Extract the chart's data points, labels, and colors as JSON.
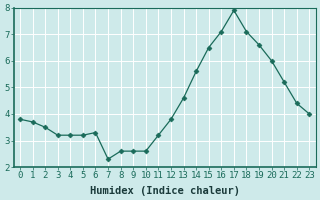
{
  "x": [
    0,
    1,
    2,
    3,
    4,
    5,
    6,
    7,
    8,
    9,
    10,
    11,
    12,
    13,
    14,
    15,
    16,
    17,
    18,
    19,
    20,
    21,
    22,
    23
  ],
  "y": [
    3.8,
    3.7,
    3.5,
    3.2,
    3.2,
    3.2,
    3.3,
    2.3,
    2.6,
    2.6,
    2.6,
    3.2,
    3.8,
    4.6,
    5.6,
    6.5,
    7.1,
    7.9,
    7.1,
    6.6,
    6.0,
    5.2,
    4.4,
    4.0
  ],
  "xlabel": "Humidex (Indice chaleur)",
  "ylim": [
    2,
    8
  ],
  "xlim": [
    -0.5,
    23.5
  ],
  "yticks": [
    2,
    3,
    4,
    5,
    6,
    7,
    8
  ],
  "xticks": [
    0,
    1,
    2,
    3,
    4,
    5,
    6,
    7,
    8,
    9,
    10,
    11,
    12,
    13,
    14,
    15,
    16,
    17,
    18,
    19,
    20,
    21,
    22,
    23
  ],
  "line_color": "#1a6b5a",
  "marker": "D",
  "marker_size": 2.5,
  "bg_color": "#ceeaea",
  "grid_color": "#ffffff",
  "tick_color": "#1a6b5a",
  "tick_label_fontsize": 6.5,
  "xlabel_fontsize": 7.5,
  "xlabel_color": "#1a3a3a"
}
